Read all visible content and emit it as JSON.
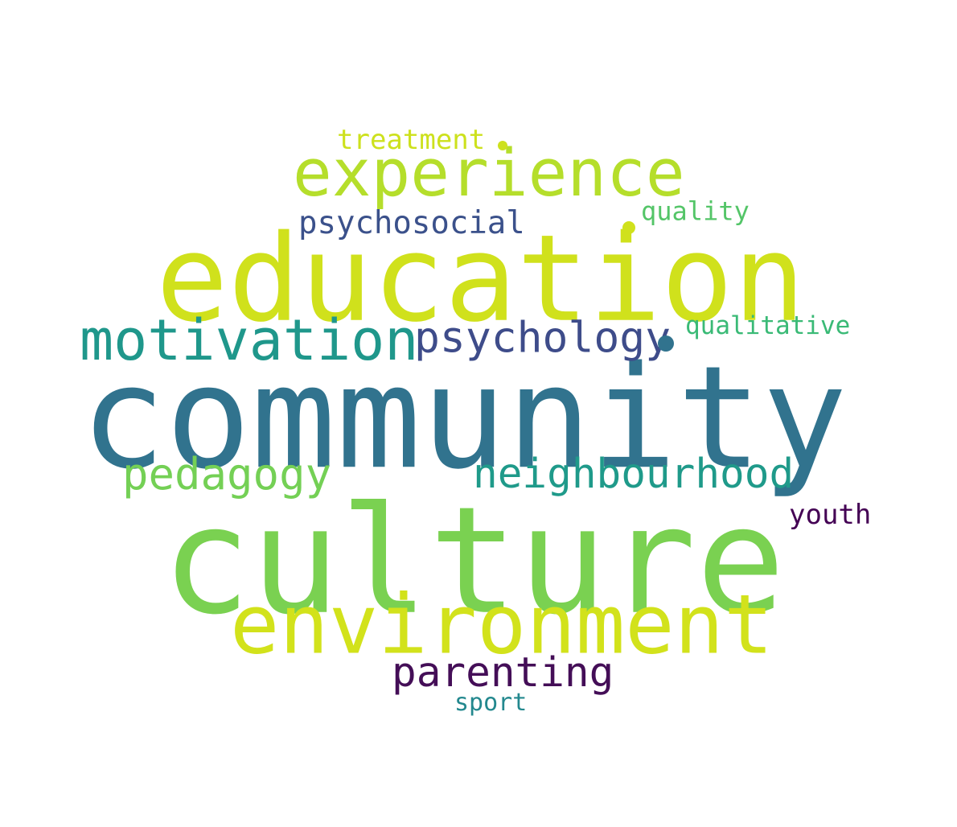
{
  "words": [
    {
      "text": "community",
      "color": "#31738e"
    },
    {
      "text": "education",
      "color": "#d0e11c"
    },
    {
      "text": "culture",
      "color": "#7ad151"
    },
    {
      "text": "environment",
      "color": "#d2e21b"
    },
    {
      "text": "experience",
      "color": "#b5de2b"
    },
    {
      "text": "motivation",
      "color": "#1f978b"
    },
    {
      "text": "psychology",
      "color": "#3e4c8a"
    },
    {
      "text": "neighbourhood",
      "color": "#1f9a8a"
    },
    {
      "text": "pedagogy",
      "color": "#74d055"
    },
    {
      "text": "parenting",
      "color": "#440e57"
    },
    {
      "text": "psychosocial",
      "color": "#3b518b"
    },
    {
      "text": "treatment",
      "color": "#cde11d"
    },
    {
      "text": "quality",
      "color": "#54c568"
    },
    {
      "text": "qualitative",
      "color": "#3aba76"
    },
    {
      "text": "youth",
      "color": "#440154"
    },
    {
      "text": "sport",
      "color": "#23888e"
    }
  ],
  "dots": [
    {
      "color": "#31738e"
    },
    {
      "color": "#d0e11c"
    },
    {
      "color": "#cde11d"
    }
  ]
}
